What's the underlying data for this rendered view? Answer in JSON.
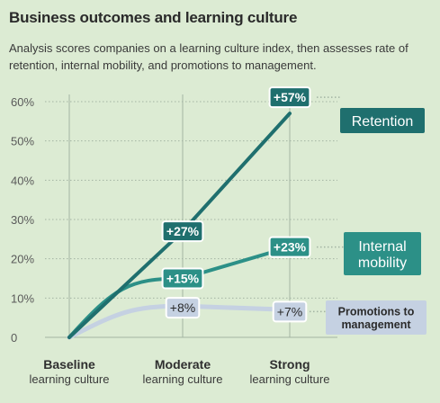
{
  "title": "Business outcomes and learning culture",
  "subtitle": "Analysis scores companies on a learning culture index, then assesses rate of retention, internal mobility, and promotions to management.",
  "colors": {
    "background": "#dcebd3",
    "grid": "#a3b4a3",
    "axis_text": "#5a5a5a",
    "retention": "#1f6f6e",
    "internal_mobility": "#2c9087",
    "promotions": "#c5d1e2",
    "promotions_text": "#2b2b2b"
  },
  "chart_data": {
    "type": "line",
    "title": "Business outcomes and learning culture",
    "categories": [
      {
        "main": "Baseline",
        "sub": "learning culture"
      },
      {
        "main": "Moderate",
        "sub": "learning culture"
      },
      {
        "main": "Strong",
        "sub": "learning culture"
      }
    ],
    "y_ticks": [
      "0",
      "10%",
      "20%",
      "30%",
      "40%",
      "50%",
      "60%"
    ],
    "ylim": [
      0,
      60
    ],
    "grid": "horizontal dotted",
    "legend": "right, labels at line ends",
    "series": [
      {
        "key": "retention",
        "name_lines": [
          "Retention"
        ],
        "values": [
          0,
          27,
          57
        ],
        "labels": [
          "",
          "+27%",
          "+57%"
        ]
      },
      {
        "key": "internal_mobility",
        "name_lines": [
          "Internal",
          "mobility"
        ],
        "values": [
          0,
          15,
          23
        ],
        "labels": [
          "",
          "+15%",
          "+23%"
        ]
      },
      {
        "key": "promotions",
        "name_lines": [
          "Promotions to",
          "management"
        ],
        "values": [
          0,
          8,
          7
        ],
        "labels": [
          "",
          "+8%",
          "+7%"
        ]
      }
    ]
  }
}
